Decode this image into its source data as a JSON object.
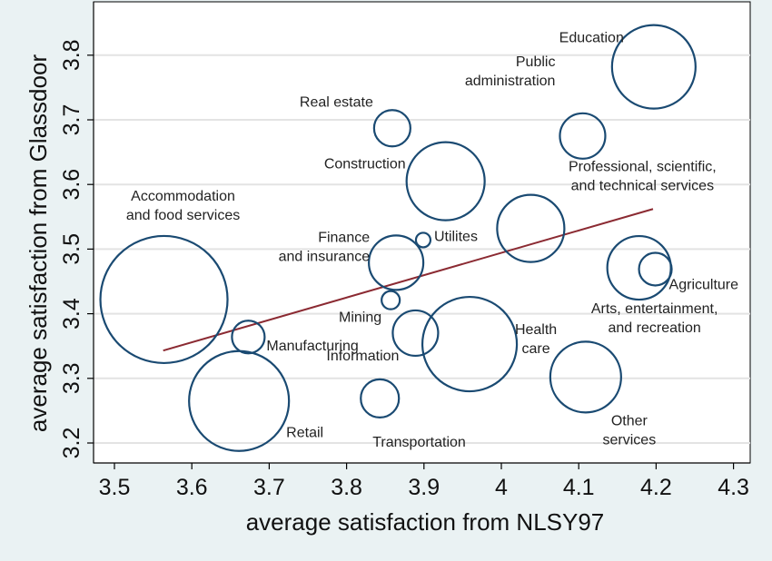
{
  "chart_data": {
    "type": "scatter",
    "title": "",
    "xlabel": "average satisfaction from NLSY97",
    "ylabel": "average satisfaction from Glassdoor",
    "xlim": [
      3.48,
      4.33
    ],
    "ylim": [
      3.19,
      3.85
    ],
    "xticks": [
      "3.5",
      "3.6",
      "3.7",
      "3.8",
      "3.9",
      "4",
      "4.1",
      "4.2",
      "4.3"
    ],
    "yticks": [
      "3.2",
      "3.3",
      "3.4",
      "3.5",
      "3.6",
      "3.7",
      "3.8"
    ],
    "grid": true,
    "bubble_note": "marker size varies by industry",
    "points": [
      {
        "label": [
          "Education"
        ],
        "x": 4.197,
        "y": 3.782,
        "size": 46
      },
      {
        "label": [
          "Public",
          "administration"
        ],
        "x": 4.105,
        "y": 3.675,
        "size": 25
      },
      {
        "label": [
          "Real estate"
        ],
        "x": 3.859,
        "y": 3.687,
        "size": 20
      },
      {
        "label": [
          "Construction"
        ],
        "x": 3.928,
        "y": 3.605,
        "size": 43
      },
      {
        "label": [
          "Professional, scientific,",
          "and technical services"
        ],
        "x": 4.038,
        "y": 3.532,
        "size": 37
      },
      {
        "label": [
          "Accommodation",
          "and food services"
        ],
        "x": 3.564,
        "y": 3.422,
        "size": 70
      },
      {
        "label": [
          "Finance",
          "and insurance"
        ],
        "x": 3.864,
        "y": 3.479,
        "size": 30
      },
      {
        "label": [
          "Utilites"
        ],
        "x": 3.899,
        "y": 3.514,
        "size": 8
      },
      {
        "label": [
          "Arts, entertainment,",
          "and recreation"
        ],
        "x": 4.178,
        "y": 3.471,
        "size": 35
      },
      {
        "label": [
          "Agriculture"
        ],
        "x": 4.199,
        "y": 3.469,
        "size": 18
      },
      {
        "label": [
          "Mining"
        ],
        "x": 3.857,
        "y": 3.421,
        "size": 10
      },
      {
        "label": [
          "Health",
          "care"
        ],
        "x": 3.959,
        "y": 3.353,
        "size": 52
      },
      {
        "label": [
          "Manufacturing"
        ],
        "x": 3.673,
        "y": 3.364,
        "size": 18
      },
      {
        "label": [
          "Information"
        ],
        "x": 3.889,
        "y": 3.37,
        "size": 25
      },
      {
        "label": [
          "Retail"
        ],
        "x": 3.661,
        "y": 3.265,
        "size": 55
      },
      {
        "label": [
          "Transportation"
        ],
        "x": 3.843,
        "y": 3.269,
        "size": 21
      },
      {
        "label": [
          "Other",
          "services"
        ],
        "x": 4.109,
        "y": 3.302,
        "size": 39
      }
    ],
    "fit_line": {
      "x": [
        3.563,
        4.196
      ],
      "y": [
        3.343,
        3.562
      ]
    }
  }
}
